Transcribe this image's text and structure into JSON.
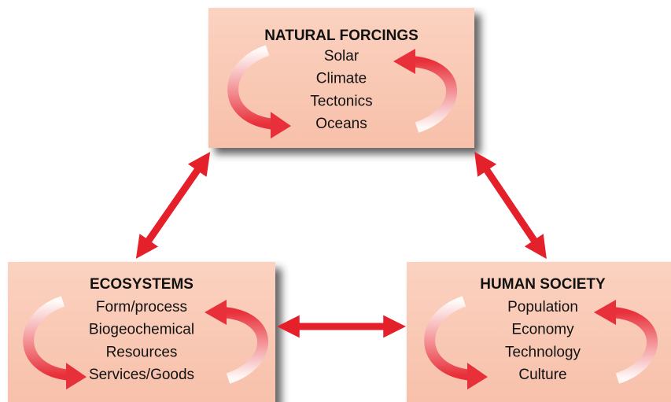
{
  "nodes": [
    {
      "title": "NATURAL FORCINGS",
      "items": [
        "Solar",
        "Climate",
        "Tectonics",
        "Oceans"
      ]
    },
    {
      "title": "ECOSYSTEMS",
      "items": [
        "Form/process",
        "Biogeochemical",
        "Resources",
        "Services/Goods"
      ]
    },
    {
      "title": "HUMAN SOCIETY",
      "items": [
        "Population",
        "Economy",
        "Technology",
        "Culture"
      ]
    }
  ]
}
